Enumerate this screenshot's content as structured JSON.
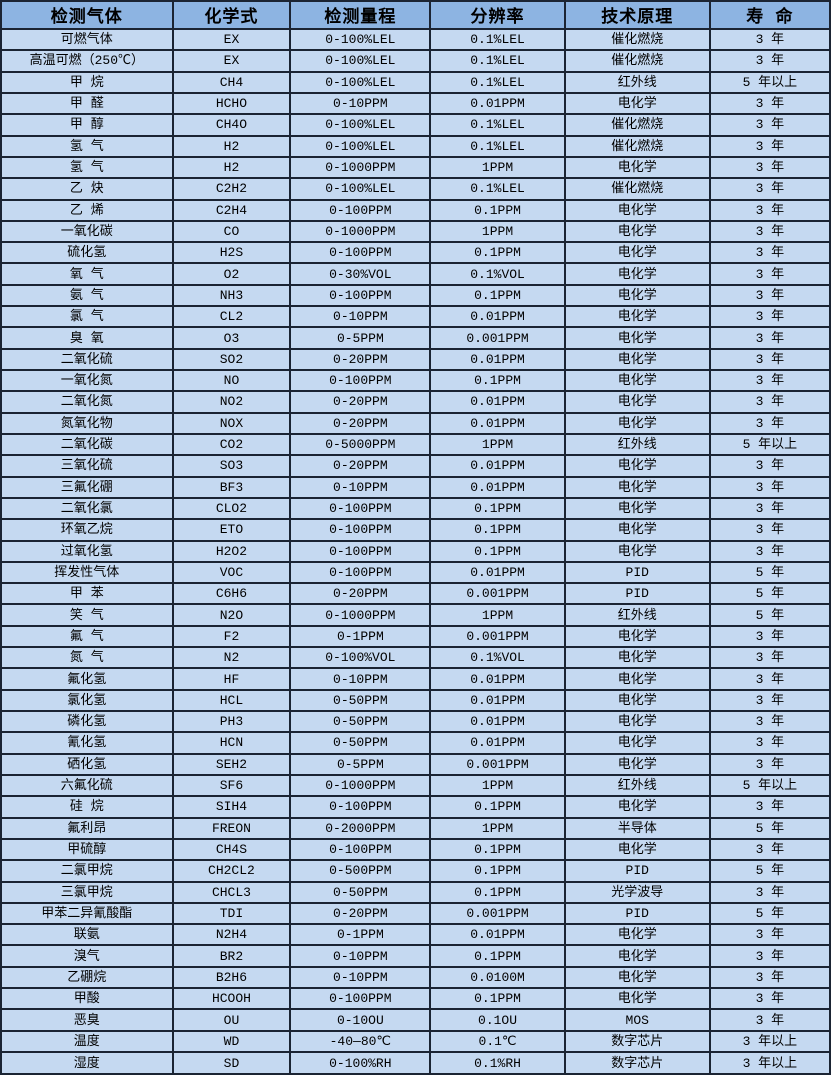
{
  "table": {
    "title": "gas-sensor-specification-table",
    "colors": {
      "header_bg": "#8db4e2",
      "row_bg": "#c5d9f1",
      "border": "#1b2433",
      "text": "#000000"
    },
    "headers": [
      "检测气体",
      "化学式",
      "检测量程",
      "分辨率",
      "技术原理",
      "寿 命"
    ],
    "rows": [
      [
        "可燃气体",
        "EX",
        "0-100%LEL",
        "0.1%LEL",
        "催化燃烧",
        "3 年"
      ],
      [
        "高温可燃（250℃）",
        "EX",
        "0-100%LEL",
        "0.1%LEL",
        "催化燃烧",
        "3 年"
      ],
      [
        "甲 烷",
        "CH4",
        "0-100%LEL",
        "0.1%LEL",
        "红外线",
        "5 年以上"
      ],
      [
        "甲 醛",
        "HCHO",
        "0-10PPM",
        "0.01PPM",
        "电化学",
        "3 年"
      ],
      [
        "甲 醇",
        "CH4O",
        "0-100%LEL",
        "0.1%LEL",
        "催化燃烧",
        "3 年"
      ],
      [
        "氢 气",
        "H2",
        "0-100%LEL",
        "0.1%LEL",
        "催化燃烧",
        "3 年"
      ],
      [
        "氢 气",
        "H2",
        "0-1000PPM",
        "1PPM",
        "电化学",
        "3 年"
      ],
      [
        "乙 炔",
        "C2H2",
        "0-100%LEL",
        "0.1%LEL",
        "催化燃烧",
        "3 年"
      ],
      [
        "乙 烯",
        "C2H4",
        "0-100PPM",
        "0.1PPM",
        "电化学",
        "3 年"
      ],
      [
        "一氧化碳",
        "CO",
        "0-1000PPM",
        "1PPM",
        "电化学",
        "3 年"
      ],
      [
        "硫化氢",
        "H2S",
        "0-100PPM",
        "0.1PPM",
        "电化学",
        "3 年"
      ],
      [
        "氧 气",
        "O2",
        "0-30%VOL",
        "0.1%VOL",
        "电化学",
        "3 年"
      ],
      [
        "氨 气",
        "NH3",
        "0-100PPM",
        "0.1PPM",
        "电化学",
        "3 年"
      ],
      [
        "氯 气",
        "CL2",
        "0-10PPM",
        "0.01PPM",
        "电化学",
        "3 年"
      ],
      [
        "臭 氧",
        "O3",
        "0-5PPM",
        "0.001PPM",
        "电化学",
        "3 年"
      ],
      [
        "二氧化硫",
        "SO2",
        "0-20PPM",
        "0.01PPM",
        "电化学",
        "3 年"
      ],
      [
        "一氧化氮",
        "NO",
        "0-100PPM",
        "0.1PPM",
        "电化学",
        "3 年"
      ],
      [
        "二氧化氮",
        "NO2",
        "0-20PPM",
        "0.01PPM",
        "电化学",
        "3 年"
      ],
      [
        "氮氧化物",
        "NOX",
        "0-20PPM",
        "0.01PPM",
        "电化学",
        "3 年"
      ],
      [
        "二氧化碳",
        "CO2",
        "0-5000PPM",
        "1PPM",
        "红外线",
        "5 年以上"
      ],
      [
        "三氧化硫",
        "SO3",
        "0-20PPM",
        "0.01PPM",
        "电化学",
        "3 年"
      ],
      [
        "三氟化硼",
        "BF3",
        "0-10PPM",
        "0.01PPM",
        "电化学",
        "3 年"
      ],
      [
        "二氧化氯",
        "CLO2",
        "0-100PPM",
        "0.1PPM",
        "电化学",
        "3 年"
      ],
      [
        "环氧乙烷",
        "ETO",
        "0-100PPM",
        "0.1PPM",
        "电化学",
        "3 年"
      ],
      [
        "过氧化氢",
        "H2O2",
        "0-100PPM",
        "0.1PPM",
        "电化学",
        "3 年"
      ],
      [
        "挥发性气体",
        "VOC",
        "0-100PPM",
        "0.01PPM",
        "PID",
        "5 年"
      ],
      [
        "甲 苯",
        "C6H6",
        "0-20PPM",
        "0.001PPM",
        "PID",
        "5 年"
      ],
      [
        "笑 气",
        "N2O",
        "0-1000PPM",
        "1PPM",
        "红外线",
        "5 年"
      ],
      [
        "氟 气",
        "F2",
        "0-1PPM",
        "0.001PPM",
        "电化学",
        "3 年"
      ],
      [
        "氮 气",
        "N2",
        "0-100%VOL",
        "0.1%VOL",
        "电化学",
        "3 年"
      ],
      [
        "氟化氢",
        "HF",
        "0-10PPM",
        "0.01PPM",
        "电化学",
        "3 年"
      ],
      [
        "氯化氢",
        "HCL",
        "0-50PPM",
        "0.01PPM",
        "电化学",
        "3 年"
      ],
      [
        "磷化氢",
        "PH3",
        "0-50PPM",
        "0.01PPM",
        "电化学",
        "3 年"
      ],
      [
        "氰化氢",
        "HCN",
        "0-50PPM",
        "0.01PPM",
        "电化学",
        "3 年"
      ],
      [
        "硒化氢",
        "SEH2",
        "0-5PPM",
        "0.001PPM",
        "电化学",
        "3 年"
      ],
      [
        "六氟化硫",
        "SF6",
        "0-1000PPM",
        "1PPM",
        "红外线",
        "5 年以上"
      ],
      [
        "硅 烷",
        "SIH4",
        "0-100PPM",
        "0.1PPM",
        "电化学",
        "3 年"
      ],
      [
        "氟利昂",
        "FREON",
        "0-2000PPM",
        "1PPM",
        "半导体",
        "5 年"
      ],
      [
        "甲硫醇",
        "CH4S",
        "0-100PPM",
        "0.1PPM",
        "电化学",
        "3 年"
      ],
      [
        "二氯甲烷",
        "CH2CL2",
        "0-500PPM",
        "0.1PPM",
        "PID",
        "5 年"
      ],
      [
        "三氯甲烷",
        "CHCL3",
        "0-50PPM",
        "0.1PPM",
        "光学波导",
        "3 年"
      ],
      [
        "甲苯二异氰酸酯",
        "TDI",
        "0-20PPM",
        "0.001PPM",
        "PID",
        "5 年"
      ],
      [
        "联氨",
        "N2H4",
        "0-1PPM",
        "0.01PPM",
        "电化学",
        "3 年"
      ],
      [
        "溴气",
        "BR2",
        "0-10PPM",
        "0.1PPM",
        "电化学",
        "3 年"
      ],
      [
        "乙硼烷",
        "B2H6",
        "0-10PPM",
        "0.0100M",
        "电化学",
        "3 年"
      ],
      [
        "甲酸",
        "HCOOH",
        "0-100PPM",
        "0.1PPM",
        "电化学",
        "3 年"
      ],
      [
        "恶臭",
        "OU",
        "0-10OU",
        "0.1OU",
        "MOS",
        "3 年"
      ],
      [
        "温度",
        "WD",
        "-40—80℃",
        "0.1℃",
        "数字芯片",
        "3 年以上"
      ],
      [
        "湿度",
        "SD",
        "0-100%RH",
        "0.1%RH",
        "数字芯片",
        "3 年以上"
      ]
    ]
  }
}
